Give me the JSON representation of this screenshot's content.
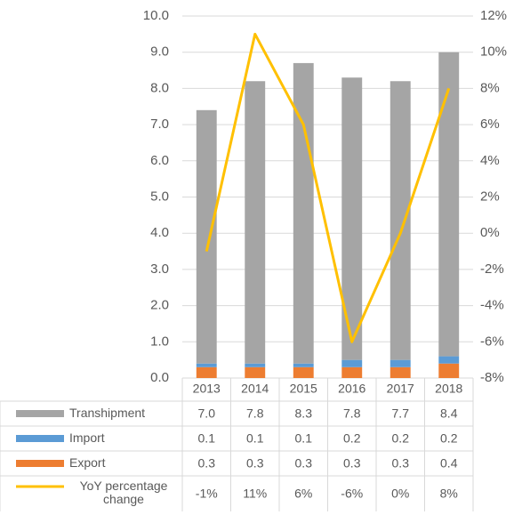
{
  "chart_data": {
    "type": "bar",
    "stacked": true,
    "grid": true,
    "categories": [
      "2013",
      "2014",
      "2015",
      "2016",
      "2017",
      "2018"
    ],
    "series": [
      {
        "name": "Transhipment",
        "color": "#a5a5a5",
        "values": [
          7.0,
          7.8,
          8.3,
          7.8,
          7.7,
          8.4
        ],
        "value_labels": [
          "7.0",
          "7.8",
          "8.3",
          "7.8",
          "7.7",
          "8.4"
        ]
      },
      {
        "name": "Import",
        "color": "#5b9bd5",
        "values": [
          0.1,
          0.1,
          0.1,
          0.2,
          0.2,
          0.2
        ],
        "value_labels": [
          "0.1",
          "0.1",
          "0.1",
          "0.2",
          "0.2",
          "0.2"
        ]
      },
      {
        "name": "Export",
        "color": "#ed7d31",
        "values": [
          0.3,
          0.3,
          0.3,
          0.3,
          0.3,
          0.4
        ],
        "value_labels": [
          "0.3",
          "0.3",
          "0.3",
          "0.3",
          "0.3",
          "0.4"
        ]
      },
      {
        "name": "YoY percentage change",
        "type": "line",
        "axis": "y2",
        "color": "#ffc000",
        "values": [
          -1,
          11,
          6,
          -6,
          0,
          8
        ],
        "value_labels": [
          "-1%",
          "11%",
          "6%",
          "-6%",
          "0%",
          "8%"
        ]
      }
    ],
    "ylim": [
      0,
      10
    ],
    "yticks": [
      {
        "value": 0,
        "label": "0.0"
      },
      {
        "value": 1,
        "label": "1.0"
      },
      {
        "value": 2,
        "label": "2.0"
      },
      {
        "value": 3,
        "label": "3.0"
      },
      {
        "value": 4,
        "label": "4.0"
      },
      {
        "value": 5,
        "label": "5.0"
      },
      {
        "value": 6,
        "label": "6.0"
      },
      {
        "value": 7,
        "label": "7.0"
      },
      {
        "value": 8,
        "label": "8.0"
      },
      {
        "value": 9,
        "label": "9.0"
      },
      {
        "value": 10,
        "label": "10.0"
      }
    ],
    "y2lim": [
      -8,
      12
    ],
    "y2ticks": [
      {
        "value": -8,
        "label": "-8%"
      },
      {
        "value": -6,
        "label": "-6%"
      },
      {
        "value": -4,
        "label": "-4%"
      },
      {
        "value": -2,
        "label": "-2%"
      },
      {
        "value": 0,
        "label": "0%"
      },
      {
        "value": 2,
        "label": "2%"
      },
      {
        "value": 4,
        "label": "4%"
      },
      {
        "value": 6,
        "label": "6%"
      },
      {
        "value": 8,
        "label": "8%"
      },
      {
        "value": 10,
        "label": "10%"
      },
      {
        "value": 12,
        "label": "12%"
      }
    ]
  }
}
